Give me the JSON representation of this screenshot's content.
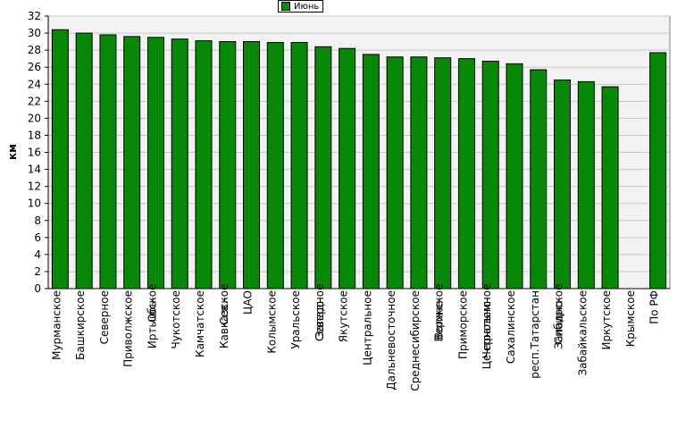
{
  "legend": {
    "label": "Июнь"
  },
  "colors": {
    "bar": "#078807",
    "bar_border": "#000000",
    "plot_bg": "#f2f2f2",
    "grid": "#c8c8c8"
  },
  "chart_data": {
    "type": "bar",
    "ylabel": "км",
    "xlabel": "",
    "ylim": [
      0,
      32
    ],
    "yticks": [
      0,
      2,
      4,
      6,
      8,
      10,
      12,
      14,
      16,
      18,
      20,
      22,
      24,
      26,
      28,
      30,
      32
    ],
    "grid": true,
    "legend_position": "top-center",
    "categories": [
      [
        "Мурманское"
      ],
      [
        "Башкирское"
      ],
      [
        "Северное"
      ],
      [
        "Приволжское"
      ],
      [
        "Обь-",
        "Иртышское"
      ],
      [
        "Чукотское"
      ],
      [
        "Камчатское"
      ],
      [
        "Сев.-",
        "Кавказское"
      ],
      [
        "ЦАО"
      ],
      [
        "Колымское"
      ],
      [
        "Уральское"
      ],
      [
        "Северо-",
        "Западное"
      ],
      [
        "Якутское"
      ],
      [
        "Центральное"
      ],
      [
        "Дальневосточное"
      ],
      [
        "Среднесибирское"
      ],
      [
        "Верхне-",
        "Волжское"
      ],
      [
        "Приморское"
      ],
      [
        "Центрально-",
        "Черноземное"
      ],
      [
        "Сахалинское"
      ],
      [
        "респ.Татарстан"
      ],
      [
        "Западно-",
        "Сибирское"
      ],
      [
        "Забайкальское"
      ],
      [
        "Иркутское"
      ],
      [
        "Крымское"
      ],
      [
        "По РФ"
      ]
    ],
    "series": [
      {
        "name": "Июнь",
        "values": [
          30.4,
          30.0,
          29.8,
          29.6,
          29.5,
          29.3,
          29.1,
          29.0,
          29.0,
          28.9,
          28.9,
          28.4,
          28.2,
          27.5,
          27.2,
          27.2,
          27.1,
          27.0,
          26.7,
          26.4,
          25.7,
          24.5,
          24.3,
          23.7,
          0,
          27.7
        ]
      }
    ]
  }
}
